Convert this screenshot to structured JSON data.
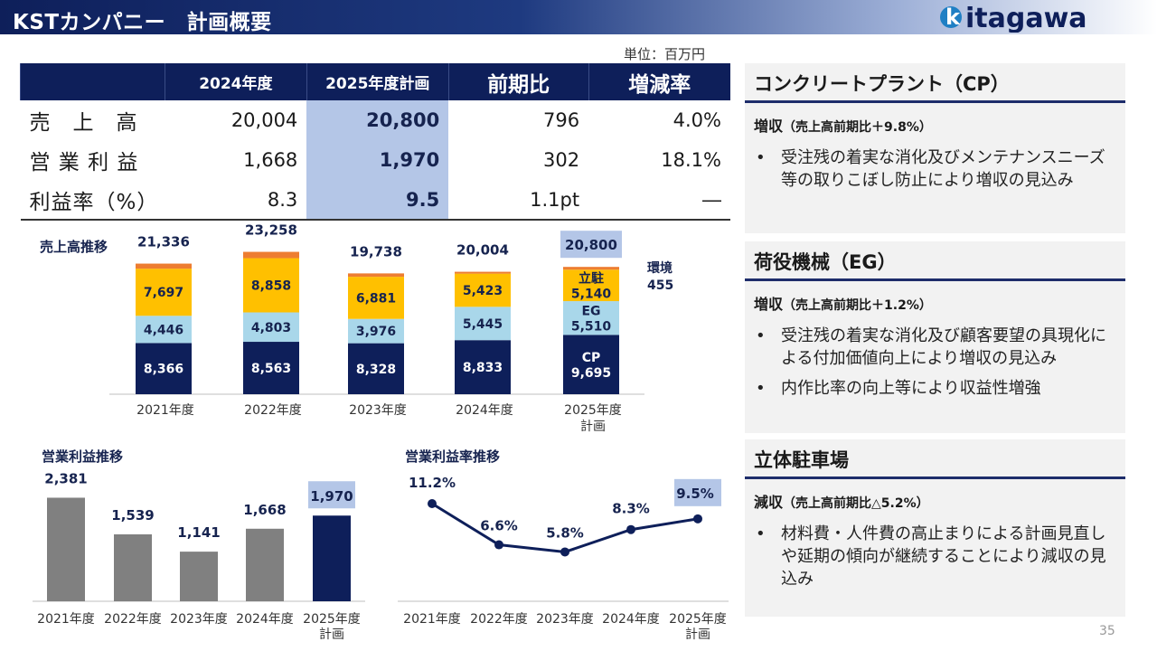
{
  "header": {
    "title": "KSTカンパニー　計画概要",
    "logo_text": "itagawa",
    "logo_k": "k"
  },
  "unit_label": "単位：百万円",
  "summary": {
    "columns": [
      "",
      "2024年度",
      "2025年度計画",
      "前期比",
      "増減率"
    ],
    "rows": [
      {
        "label": "売　上　高",
        "v2024": "20,004",
        "plan": "20,800",
        "diff": "796",
        "rate": "4.0%"
      },
      {
        "label": "営 業 利 益",
        "v2024": "1,668",
        "plan": "1,970",
        "diff": "302",
        "rate": "18.1%"
      },
      {
        "label": "利益率（%）",
        "v2024": "8.3",
        "plan": "9.5",
        "diff": "1.1pt",
        "rate": "―"
      }
    ]
  },
  "sales_chart": {
    "title": "売上高推移",
    "colors": {
      "cp": "#0e1f5a",
      "eg": "#a9d7ea",
      "parking": "#ffc000",
      "env": "#ed7d31",
      "plan_highlight": "#b4c6e7"
    },
    "labels": {
      "parking": "立駐",
      "eg": "EG",
      "cp": "CP",
      "env": "環境"
    }
  },
  "chart_data": [
    {
      "type": "bar",
      "stacked": true,
      "title": "売上高推移",
      "categories": [
        "2021年度",
        "2022年度",
        "2023年度",
        "2024年度",
        "2025年度計画"
      ],
      "series": [
        {
          "name": "CP",
          "values": [
            8366,
            8563,
            8328,
            8833,
            9695
          ]
        },
        {
          "name": "EG",
          "values": [
            4446,
            4803,
            3976,
            5445,
            5510
          ]
        },
        {
          "name": "立駐",
          "values": [
            7697,
            8858,
            6881,
            5423,
            5140
          ]
        },
        {
          "name": "環境",
          "values": [
            827,
            1034,
            553,
            303,
            455
          ]
        }
      ],
      "totals": [
        "21,336",
        "23,258",
        "19,738",
        "20,004",
        "20,800"
      ],
      "value_labels": {
        "CP": [
          "8,366",
          "8,563",
          "8,328",
          "8,833",
          "9,695"
        ],
        "EG": [
          "4,446",
          "4,803",
          "3,976",
          "5,445",
          "5,510"
        ],
        "立駐": [
          "7,697",
          "8,858",
          "6,881",
          "5,423",
          "5,140"
        ],
        "環境": [
          "",
          "",
          "",
          "",
          "455"
        ]
      }
    },
    {
      "type": "bar",
      "title": "営業利益推移",
      "categories": [
        "2021年度",
        "2022年度",
        "2023年度",
        "2024年度",
        "2025年度計画"
      ],
      "values": [
        2381,
        1539,
        1141,
        1668,
        1970
      ],
      "value_labels": [
        "2,381",
        "1,539",
        "1,141",
        "1,668",
        "1,970"
      ],
      "colors": {
        "actual": "#808080",
        "plan": "#0e1f5a"
      }
    },
    {
      "type": "line",
      "title": "営業利益率推移",
      "categories": [
        "2021年度",
        "2022年度",
        "2023年度",
        "2024年度",
        "2025年度計画"
      ],
      "values": [
        11.2,
        6.6,
        5.8,
        8.3,
        9.5
      ],
      "value_labels": [
        "11.2%",
        "6.6%",
        "5.8%",
        "8.3%",
        "9.5%"
      ],
      "color": "#0e1f5a"
    }
  ],
  "category_lines": {
    "line1": [
      "2021年度",
      "2022年度",
      "2023年度",
      "2024年度",
      "2025年度"
    ],
    "line2_plan": "計画"
  },
  "profit_chart": {
    "title": "営業利益推移"
  },
  "margin_chart": {
    "title": "営業利益率推移"
  },
  "panels": [
    {
      "title": "コンクリートプラント（CP）",
      "sub": "増収",
      "note": "（売上高前期比＋9.8%）",
      "bullets": [
        "受注残の着実な消化及びメンテナンスニーズ等の取りこぼし防止により増収の見込み"
      ]
    },
    {
      "title": "荷役機械（EG）",
      "sub": "増収",
      "note": "（売上高前期比＋1.2%）",
      "bullets": [
        "受注残の着実な消化及び顧客要望の具現化による付加価値向上により増収の見込み",
        "内作比率の向上等により収益性増強"
      ]
    },
    {
      "title": "立体駐車場",
      "sub": "減収",
      "note": "（売上高前期比△5.2%）",
      "bullets": [
        "材料費・人件費の高止まりによる計画見直しや延期の傾向が継続することにより減収の見込み"
      ]
    }
  ],
  "page_number": "35"
}
